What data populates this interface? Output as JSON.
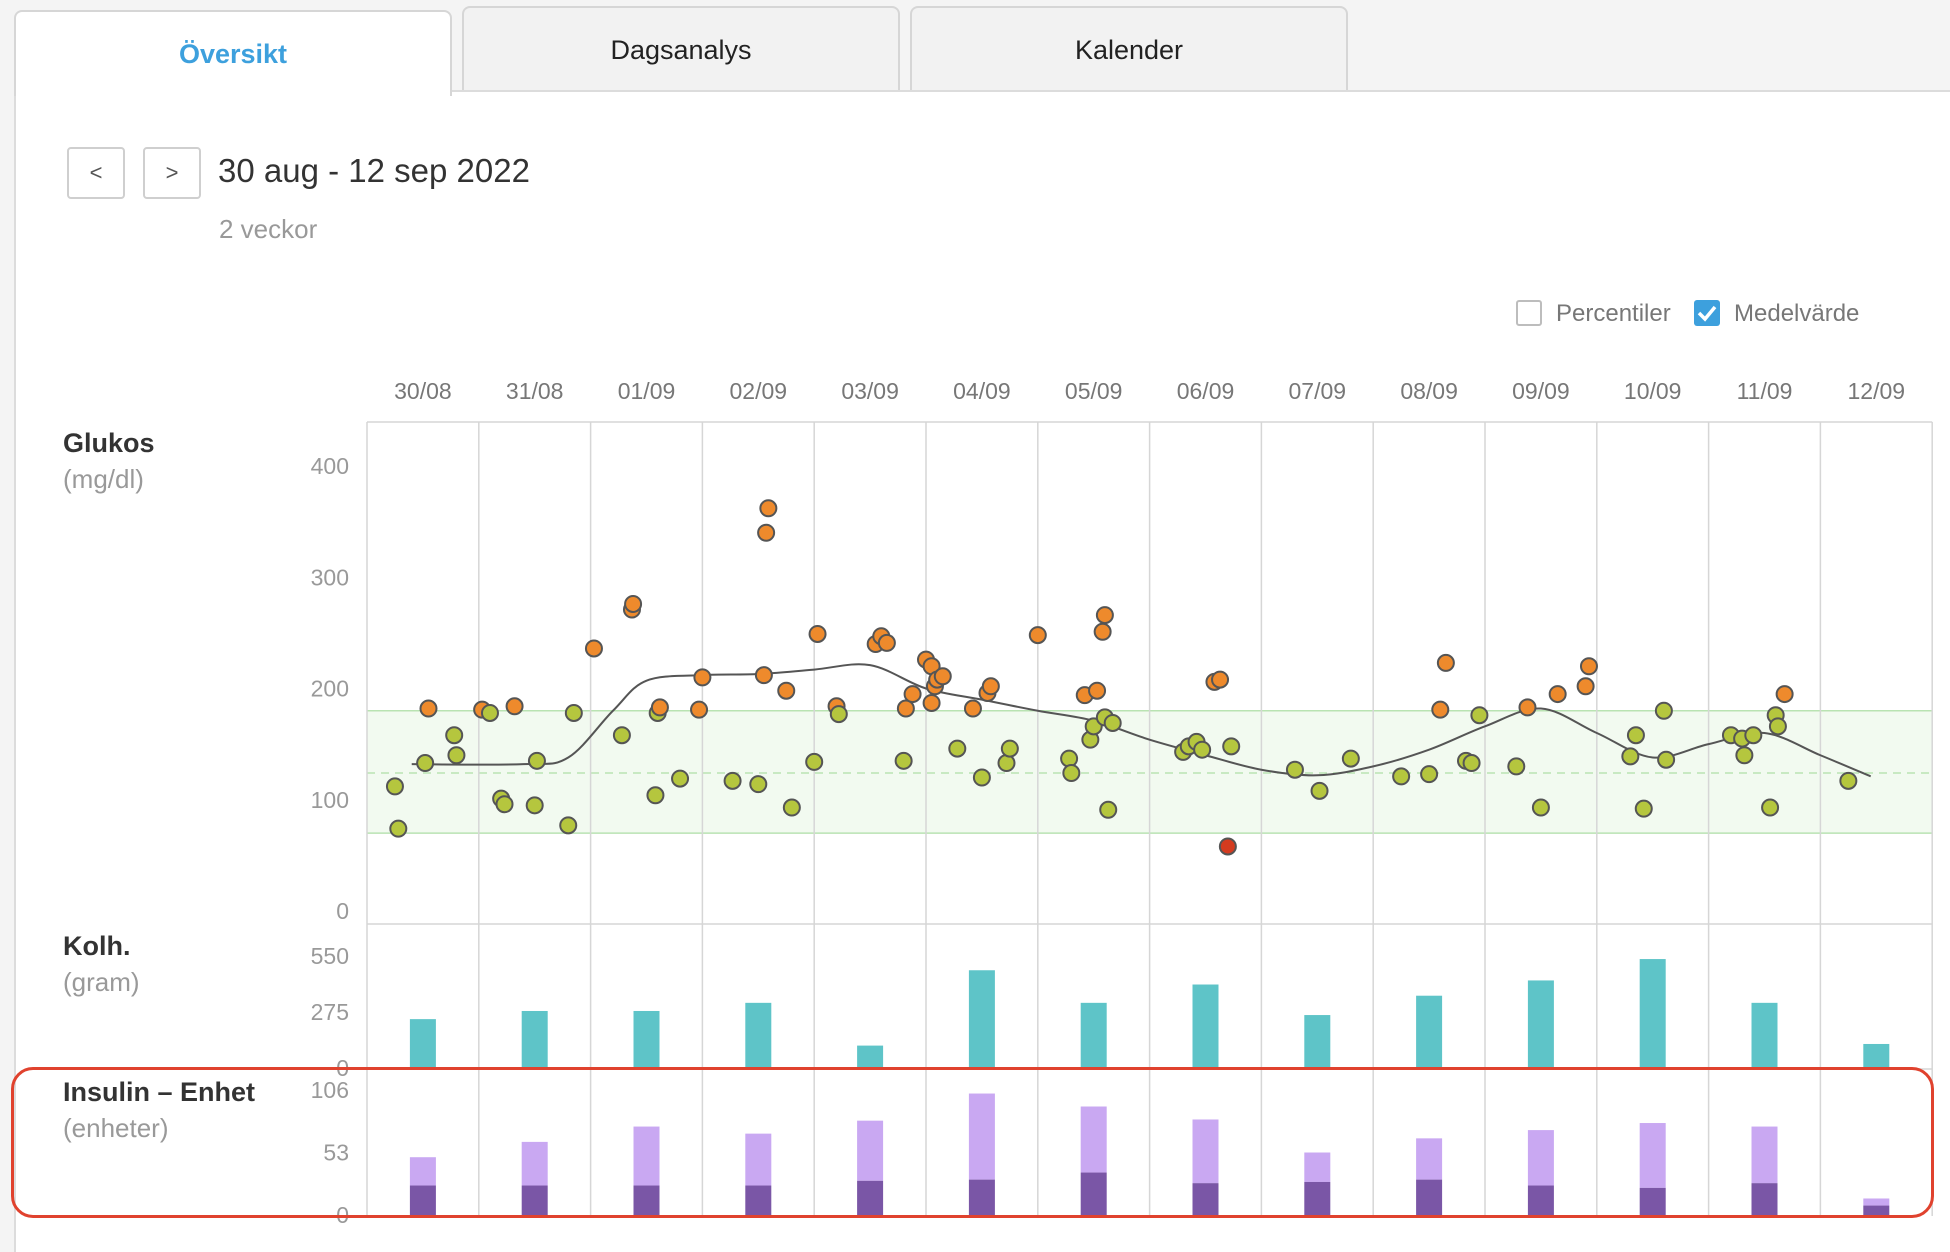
{
  "tabs": [
    {
      "label": "Översikt",
      "active": true
    },
    {
      "label": "Dagsanalys",
      "active": false
    },
    {
      "label": "Kalender",
      "active": false
    }
  ],
  "nav": {
    "prev_label": "<",
    "next_label": ">"
  },
  "range": {
    "title": "30 aug - 12 sep 2022",
    "subtitle": "2 veckor"
  },
  "options": {
    "percentiles": {
      "label": "Percentiler",
      "checked": false
    },
    "mean": {
      "label": "Medelvärde",
      "checked": true
    }
  },
  "colors": {
    "accent": "#3da0dd",
    "glucose_in_range": "#b5c63e",
    "glucose_high": "#ee8a2c",
    "glucose_low": "#d43b1f",
    "carbs": "#5ec4c8",
    "insulin_basal": "#c9a8f2",
    "insulin_bolus": "#7a56a6",
    "highlight": "#e0422e"
  },
  "chart_data": [
    {
      "type": "scatter",
      "title": "Glukos",
      "ylabel": "(mg/dl)",
      "ylim": [
        0,
        400
      ],
      "yticks": [
        0,
        100,
        200,
        300,
        400
      ],
      "target_range": [
        70,
        180
      ],
      "target_mid": 124,
      "categories": [
        "30/08",
        "31/08",
        "01/09",
        "02/09",
        "03/09",
        "04/09",
        "05/09",
        "06/09",
        "07/09",
        "08/09",
        "09/09",
        "10/09",
        "11/09",
        "12/09"
      ],
      "points": [
        [
          0.25,
          112
        ],
        [
          0.28,
          74
        ],
        [
          0.52,
          133
        ],
        [
          0.55,
          182
        ],
        [
          0.78,
          158
        ],
        [
          0.8,
          140
        ],
        [
          1.03,
          181
        ],
        [
          1.1,
          178
        ],
        [
          1.2,
          101
        ],
        [
          1.23,
          96
        ],
        [
          1.32,
          184
        ],
        [
          1.5,
          95
        ],
        [
          1.52,
          135
        ],
        [
          1.8,
          77
        ],
        [
          1.85,
          178
        ],
        [
          2.03,
          236
        ],
        [
          2.28,
          158
        ],
        [
          2.37,
          271
        ],
        [
          2.38,
          276
        ],
        [
          2.58,
          104
        ],
        [
          2.6,
          178
        ],
        [
          2.62,
          183
        ],
        [
          2.8,
          119
        ],
        [
          2.97,
          181
        ],
        [
          3.0,
          210
        ],
        [
          3.27,
          117
        ],
        [
          3.5,
          114
        ],
        [
          3.55,
          212
        ],
        [
          3.57,
          340
        ],
        [
          3.59,
          362
        ],
        [
          3.75,
          198
        ],
        [
          3.8,
          93
        ],
        [
          4.0,
          134
        ],
        [
          4.03,
          249
        ],
        [
          4.2,
          184
        ],
        [
          4.22,
          177
        ],
        [
          4.55,
          240
        ],
        [
          4.6,
          247
        ],
        [
          4.65,
          241
        ],
        [
          4.8,
          135
        ],
        [
          4.82,
          182
        ],
        [
          4.88,
          195
        ],
        [
          5.0,
          226
        ],
        [
          5.05,
          220
        ],
        [
          5.05,
          187
        ],
        [
          5.08,
          202
        ],
        [
          5.1,
          208
        ],
        [
          5.15,
          211
        ],
        [
          5.28,
          146
        ],
        [
          5.42,
          182
        ],
        [
          5.5,
          120
        ],
        [
          5.55,
          196
        ],
        [
          5.58,
          202
        ],
        [
          5.72,
          133
        ],
        [
          5.75,
          146
        ],
        [
          6.0,
          248
        ],
        [
          6.28,
          137
        ],
        [
          6.42,
          194
        ],
        [
          6.47,
          154
        ],
        [
          6.5,
          166
        ],
        [
          6.53,
          198
        ],
        [
          6.58,
          251
        ],
        [
          6.6,
          266
        ],
        [
          6.6,
          174
        ],
        [
          6.63,
          91
        ],
        [
          6.67,
          169
        ],
        [
          6.3,
          124
        ],
        [
          7.3,
          143
        ],
        [
          7.35,
          148
        ],
        [
          7.42,
          152
        ],
        [
          7.47,
          145
        ],
        [
          7.58,
          206
        ],
        [
          7.63,
          208
        ],
        [
          7.7,
          58
        ],
        [
          7.73,
          148
        ],
        [
          8.3,
          127
        ],
        [
          8.52,
          108
        ],
        [
          8.8,
          137
        ],
        [
          9.25,
          121
        ],
        [
          9.5,
          123
        ],
        [
          9.6,
          181
        ],
        [
          9.65,
          223
        ],
        [
          9.83,
          135
        ],
        [
          9.88,
          133
        ],
        [
          9.95,
          176
        ],
        [
          10.28,
          130
        ],
        [
          10.38,
          183
        ],
        [
          10.5,
          93
        ],
        [
          10.65,
          195
        ],
        [
          10.9,
          202
        ],
        [
          10.93,
          220
        ],
        [
          11.3,
          139
        ],
        [
          11.35,
          158
        ],
        [
          11.42,
          92
        ],
        [
          11.6,
          180
        ],
        [
          11.62,
          136
        ],
        [
          12.2,
          158
        ],
        [
          12.3,
          155
        ],
        [
          12.32,
          140
        ],
        [
          12.4,
          158
        ],
        [
          12.55,
          93
        ],
        [
          12.6,
          176
        ],
        [
          12.62,
          166
        ],
        [
          12.68,
          195
        ],
        [
          13.25,
          117
        ]
      ],
      "mean_line": [
        [
          0.4,
          132
        ],
        [
          1.4,
          132
        ],
        [
          1.8,
          138
        ],
        [
          2.2,
          180
        ],
        [
          2.5,
          207
        ],
        [
          3.0,
          212
        ],
        [
          3.5,
          213
        ],
        [
          4.0,
          217
        ],
        [
          4.5,
          221
        ],
        [
          5.0,
          200
        ],
        [
          5.5,
          190
        ],
        [
          6.0,
          180
        ],
        [
          6.5,
          171
        ],
        [
          7.0,
          154
        ],
        [
          7.5,
          140
        ],
        [
          8.0,
          127
        ],
        [
          8.5,
          122
        ],
        [
          9.0,
          130
        ],
        [
          9.5,
          145
        ],
        [
          10.0,
          166
        ],
        [
          10.5,
          182
        ],
        [
          11.0,
          160
        ],
        [
          11.5,
          138
        ],
        [
          12.0,
          150
        ],
        [
          12.5,
          160
        ],
        [
          13.0,
          140
        ],
        [
          13.45,
          121
        ]
      ]
    },
    {
      "type": "bar",
      "title": "Kolh.",
      "ylabel": "(gram)",
      "ylim": [
        0,
        550
      ],
      "yticks": [
        0,
        275,
        550
      ],
      "categories": [
        "30/08",
        "31/08",
        "01/09",
        "02/09",
        "03/09",
        "04/09",
        "05/09",
        "06/09",
        "07/09",
        "08/09",
        "09/09",
        "10/09",
        "11/09",
        "12/09"
      ],
      "values": [
        240,
        280,
        280,
        320,
        110,
        480,
        320,
        410,
        260,
        355,
        430,
        535,
        320,
        118
      ]
    },
    {
      "type": "bar",
      "title": "Insulin – Enhet",
      "ylabel": "(enheter)",
      "ylim": [
        0,
        106
      ],
      "yticks": [
        0,
        53,
        106
      ],
      "categories": [
        "30/08",
        "31/08",
        "01/09",
        "02/09",
        "03/09",
        "04/09",
        "05/09",
        "06/09",
        "07/09",
        "08/09",
        "09/09",
        "10/09",
        "11/09",
        "12/09"
      ],
      "series": [
        {
          "role": "bolus",
          "values": [
            25,
            25,
            25,
            25,
            29,
            30,
            36,
            27,
            28,
            30,
            25,
            23,
            27,
            8
          ]
        },
        {
          "role": "basal",
          "values": [
            24,
            37,
            50,
            44,
            51,
            73,
            56,
            54,
            25,
            35,
            47,
            55,
            48,
            6
          ]
        }
      ]
    }
  ]
}
